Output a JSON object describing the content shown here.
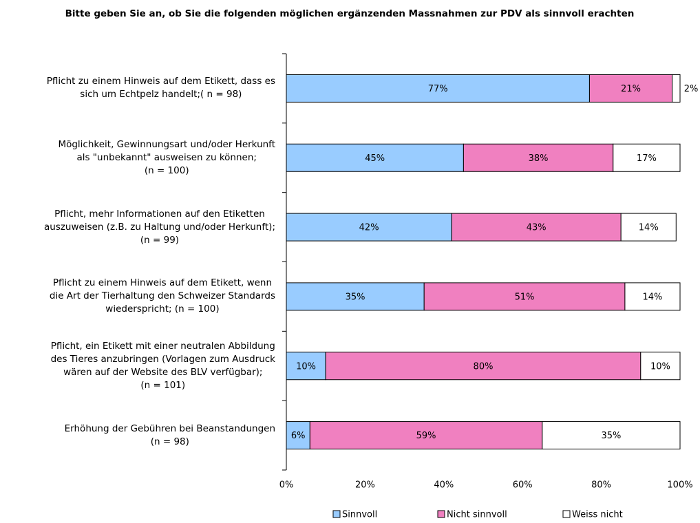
{
  "chart_data": {
    "type": "stacked_barh",
    "title": "Bitte geben Sie an, ob Sie die folgenden möglichen ergänzenden Massnahmen zur PDV als sinnvoll erachten",
    "categories": [
      "Pflicht zu einem Hinweis auf dem Etikett, dass es\nsich um Echtpelz handelt;( n = 98)",
      "Möglichkeit, Gewinnungsart und/oder Herkunft\nals \"unbekannt\" ausweisen zu können;\n(n = 100)",
      "Pflicht, mehr Informationen auf den Etiketten\nauszuweisen (z.B. zu Haltung und/oder Herkunft);\n(n = 99)",
      "Pflicht zu einem Hinweis auf dem Etikett, wenn\ndie Art der Tierhaltung den Schweizer Standards\nwiederspricht; (n = 100)",
      "Pflicht, ein Etikett mit einer neutralen Abbildung\ndes Tieres anzubringen (Vorlagen zum Ausdruck\nwären auf der Website des BLV verfügbar);\n(n = 101)",
      "Erhöhung der Gebühren bei Beanstandungen\n(n = 98)"
    ],
    "series": [
      {
        "name": "Sinnvoll",
        "color": "#99ccff",
        "values": [
          77,
          45,
          42,
          35,
          10,
          6
        ],
        "value_labels": [
          "77%",
          "45%",
          "42%",
          "35%",
          "10%",
          "6%"
        ]
      },
      {
        "name": "Nicht sinnvoll",
        "color": "#f080c0",
        "values": [
          21,
          38,
          43,
          51,
          80,
          59
        ],
        "value_labels": [
          "21%",
          "38%",
          "43%",
          "51%",
          "80%",
          "59%"
        ]
      },
      {
        "name": "Weiss nicht",
        "color": "#ffffff",
        "values": [
          2,
          17,
          14,
          14,
          10,
          35
        ],
        "value_labels": [
          "2%",
          "17%",
          "14%",
          "14%",
          "10%",
          "35%"
        ]
      }
    ],
    "xlim": [
      0,
      100
    ],
    "xticks": [
      {
        "value": 0,
        "label": "0%"
      },
      {
        "value": 20,
        "label": "20%"
      },
      {
        "value": 40,
        "label": "40%"
      },
      {
        "value": 60,
        "label": "60%"
      },
      {
        "value": 80,
        "label": "80%"
      },
      {
        "value": 100,
        "label": "100%"
      }
    ],
    "legend": "bottom"
  }
}
